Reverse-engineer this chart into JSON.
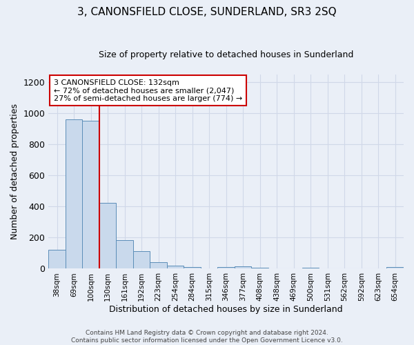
{
  "title": "3, CANONSFIELD CLOSE, SUNDERLAND, SR3 2SQ",
  "subtitle": "Size of property relative to detached houses in Sunderland",
  "xlabel": "Distribution of detached houses by size in Sunderland",
  "ylabel": "Number of detached properties",
  "footer": "Contains HM Land Registry data © Crown copyright and database right 2024.\nContains public sector information licensed under the Open Government Licence v3.0.",
  "categories": [
    "38sqm",
    "69sqm",
    "100sqm",
    "130sqm",
    "161sqm",
    "192sqm",
    "223sqm",
    "254sqm",
    "284sqm",
    "315sqm",
    "346sqm",
    "377sqm",
    "408sqm",
    "438sqm",
    "469sqm",
    "500sqm",
    "531sqm",
    "562sqm",
    "592sqm",
    "623sqm",
    "654sqm"
  ],
  "values": [
    120,
    960,
    950,
    425,
    185,
    115,
    42,
    18,
    13,
    0,
    13,
    14,
    8,
    0,
    0,
    8,
    0,
    0,
    0,
    3,
    10
  ],
  "bar_color": "#c9d9ec",
  "bar_edge_color": "#5b8db8",
  "grid_color": "#d0d8e8",
  "bg_color": "#eaeff7",
  "annotation_text": "3 CANONSFIELD CLOSE: 132sqm\n← 72% of detached houses are smaller (2,047)\n27% of semi-detached houses are larger (774) →",
  "annotation_box_color": "white",
  "annotation_box_edge": "#cc0000",
  "vline_x": 2.5,
  "vline_color": "#cc0000",
  "ylim": [
    0,
    1250
  ],
  "yticks": [
    0,
    200,
    400,
    600,
    800,
    1000,
    1200
  ]
}
